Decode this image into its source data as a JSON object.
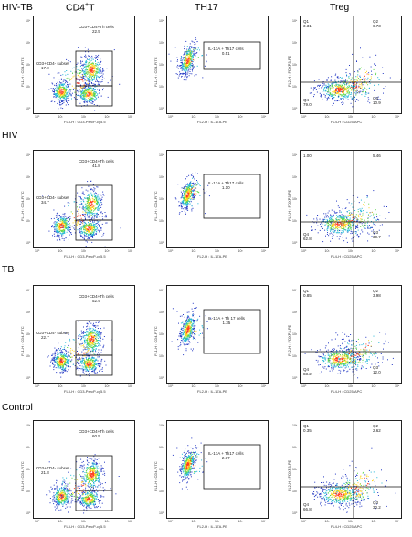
{
  "headers": {
    "group": "HIV-TB",
    "cd4": "CD4",
    "cd4_sup": "+",
    "cd4_t": "T",
    "th17": "TH17",
    "treg": "Treg"
  },
  "rows": [
    {
      "label": "",
      "cd4": {
        "ylabel": "FL1-H : CD4-FITC",
        "xlabel": "FL3-H : CD3-PercP-cy5.5",
        "gate1_name": "CD3+CD4+Th cells",
        "gate1_val": "22.5",
        "gate2_name": "CD3+CD4- subset",
        "gate2_val": "17.0"
      },
      "th17": {
        "ylabel": "FL1-H : CD4-FITC",
        "xlabel": "FL2-H : IL-17A-PE",
        "gate_name": "IL-17A + Th17 cells",
        "gate_val": "0.51"
      },
      "treg": {
        "ylabel": "FL2-H : FOXP3-PE",
        "xlabel": "FL4-H : CD25-APC",
        "q1": "Q1",
        "q1v": "3.31",
        "q2": "Q2",
        "q2v": "6.73",
        "q3": "Q3",
        "q3v": "10.9",
        "q4": "Q4",
        "q4v": "79.0"
      }
    },
    {
      "label": "HIV",
      "cd4": {
        "ylabel": "FL1-H : CD4-FITC",
        "xlabel": "FL3-H : CD3-PercP-cy5.5",
        "gate1_name": "CD3+CD4+Th cells",
        "gate1_val": "41.8",
        "gate2_name": "CD3+CD4- subset",
        "gate2_val": "34.7"
      },
      "th17": {
        "ylabel": "FL1-H : CD4-FITC",
        "xlabel": "FL2-H : IL-17A-PE",
        "gate_name": "IL-17A + Th17 cells",
        "gate_val": "1.10"
      },
      "treg": {
        "ylabel": "FL2-H : FOXP3-PE",
        "xlabel": "FL4-H : CD25-APC",
        "q1": "",
        "q1v": "1.00",
        "q2": "",
        "q2v": "5.46",
        "q3": "Q3",
        "q3v": "30.7",
        "q4": "Q4",
        "q4v": "62.8"
      }
    },
    {
      "label": "TB",
      "cd4": {
        "ylabel": "FL1-H : CD4-FITC",
        "xlabel": "FL3-H : CD3-PercP-cy5.5",
        "gate1_name": "CD3+CD4+Th cells",
        "gate1_val": "52.9",
        "gate2_name": "CD3+CD4- subset",
        "gate2_val": "22.7"
      },
      "th17": {
        "ylabel": "FL1-H : CD4-FITC",
        "xlabel": "FL2-H : IL-17A-PE",
        "gate_name": "IL-17A + Th 17 cells",
        "gate_val": "1.35"
      },
      "treg": {
        "ylabel": "FL2-H : FOXP3-PE",
        "xlabel": "FL4-H : CD25-APC",
        "q1": "Q1",
        "q1v": "0.85",
        "q2": "Q2",
        "q2v": "3.98",
        "q3": "Q3",
        "q3v": "12.0",
        "q4": "Q4",
        "q4v": "83.2"
      }
    },
    {
      "label": "Control",
      "cd4": {
        "ylabel": "FL1-H : CD4-FITC",
        "xlabel": "FL3-H : CD3-PercP-cy5.5",
        "gate1_name": "CD3+CD4+Th cells",
        "gate1_val": "60.5",
        "gate2_name": "CD3+CD4- subset",
        "gate2_val": "21.8"
      },
      "th17": {
        "ylabel": "FL1-H : CD4-FITC",
        "xlabel": "FL2-H : IL-17A-PE",
        "gate_name": "IL-17A + Th17 cells",
        "gate_val": "2.37"
      },
      "treg": {
        "ylabel": "FL2-H : FOXP3-PE",
        "xlabel": "FL4-H : CD25-APC",
        "q1": "Q1",
        "q1v": "0.35",
        "q2": "Q2",
        "q2v": "2.62",
        "q3": "Q3",
        "q3v": "30.2",
        "q4": "Q4",
        "q4v": "66.8"
      }
    }
  ],
  "ticks": [
    "10⁰",
    "10¹",
    "10²",
    "10³",
    "10⁴"
  ]
}
